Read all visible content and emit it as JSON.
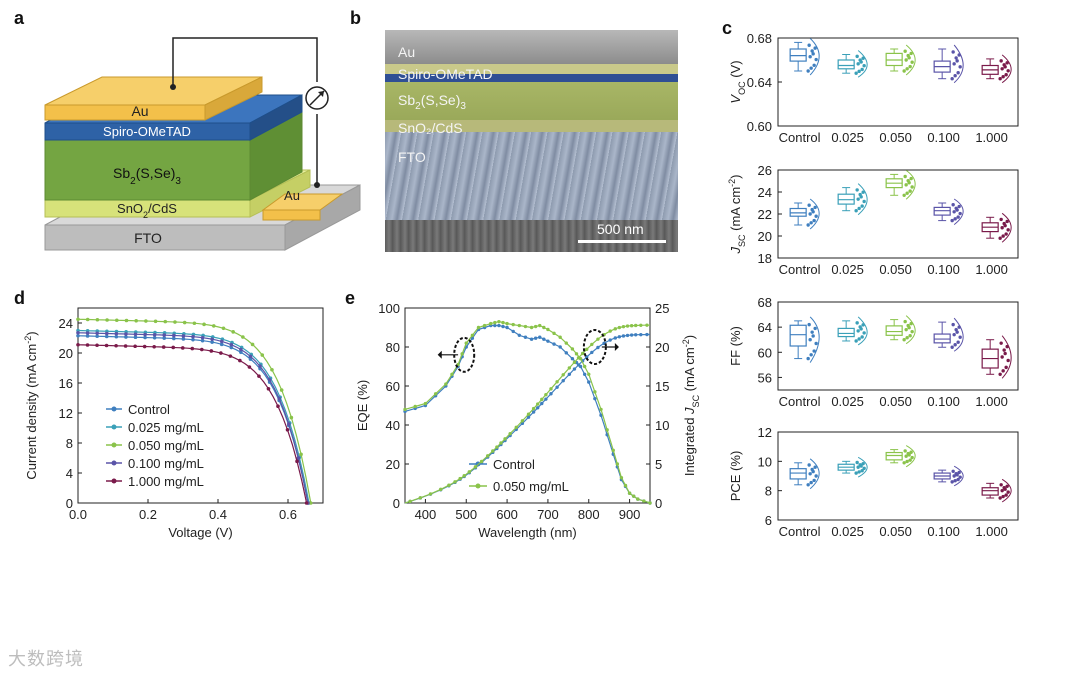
{
  "panels": {
    "a": "a",
    "b": "b",
    "c": "c",
    "d": "d",
    "e": "e"
  },
  "panel_a": {
    "layers": {
      "au_top": "Au",
      "spiro": "Spiro-OMeTAD",
      "absorber_base": "Sb",
      "absorber_sub": "2",
      "absorber_mid": "(S,Se)",
      "absorber_sub2": "3",
      "sno2_base": "SnO",
      "sno2_sub": "2",
      "sno2_tail": "/CdS",
      "fto": "FTO",
      "au_contact": "Au"
    }
  },
  "panel_b": {
    "layers": {
      "au": "Au",
      "spiro": "Spiro-OMeTAD",
      "absorber_base": "Sb",
      "absorber_sub": "2",
      "absorber_mid": "(S,Se)",
      "absorber_sub2": "3",
      "sno2": "SnO₂/CdS",
      "fto": "FTO"
    },
    "scale_bar": "500 nm"
  },
  "colors": {
    "control": "#3f7fbf",
    "c025": "#3aa0b8",
    "c050": "#8ac34a",
    "c100": "#5a54a8",
    "c1000": "#7a1a4a",
    "au": "#f3c04a",
    "spiro": "#2e62a6",
    "absorber": "#74a542",
    "sno2": "#d7e27a",
    "fto": "#bdbdbd"
  },
  "chart_data": [
    {
      "type": "box",
      "id": "voc",
      "ylabel_base": "V",
      "ylabel_sub": "OC",
      "ylabel_unit": " (V)",
      "categories": [
        "Control",
        "0.025",
        "0.050",
        "0.100",
        "1.000"
      ],
      "ylim": [
        0.6,
        0.68
      ],
      "yticks": [
        "0.60",
        "0.64",
        "0.68"
      ],
      "yticks_v": [
        0.6,
        0.64,
        0.68
      ],
      "boxes": [
        {
          "whislo": 0.65,
          "q1": 0.659,
          "med": 0.664,
          "q3": 0.67,
          "whishi": 0.676
        },
        {
          "whislo": 0.648,
          "q1": 0.652,
          "med": 0.655,
          "q3": 0.66,
          "whishi": 0.665
        },
        {
          "whislo": 0.65,
          "q1": 0.655,
          "med": 0.66,
          "q3": 0.666,
          "whishi": 0.67
        },
        {
          "whislo": 0.643,
          "q1": 0.649,
          "med": 0.654,
          "q3": 0.659,
          "whishi": 0.67
        },
        {
          "whislo": 0.643,
          "q1": 0.647,
          "med": 0.651,
          "q3": 0.655,
          "whishi": 0.661
        }
      ]
    },
    {
      "type": "box",
      "id": "jsc",
      "ylabel_base": "J",
      "ylabel_sub": "SC",
      "ylabel_unit": " (mA cm",
      "ylabel_sup": "-2",
      "ylabel_close": ")",
      "categories": [
        "Control",
        "0.025",
        "0.050",
        "0.100",
        "1.000"
      ],
      "ylim": [
        18,
        26
      ],
      "yticks": [
        "18",
        "20",
        "22",
        "24",
        "26"
      ],
      "yticks_v": [
        18,
        20,
        22,
        24,
        26
      ],
      "boxes": [
        {
          "whislo": 21.0,
          "q1": 21.8,
          "med": 22.1,
          "q3": 22.5,
          "whishi": 23.0
        },
        {
          "whislo": 22.3,
          "q1": 22.9,
          "med": 23.3,
          "q3": 23.8,
          "whishi": 24.4
        },
        {
          "whislo": 23.7,
          "q1": 24.4,
          "med": 24.8,
          "q3": 25.2,
          "whishi": 25.6
        },
        {
          "whislo": 21.4,
          "q1": 21.9,
          "med": 22.3,
          "q3": 22.6,
          "whishi": 23.0
        },
        {
          "whislo": 19.8,
          "q1": 20.4,
          "med": 20.8,
          "q3": 21.2,
          "whishi": 21.7
        }
      ]
    },
    {
      "type": "box",
      "id": "ff",
      "ylabel_base": "FF (%)",
      "categories": [
        "Control",
        "0.025",
        "0.050",
        "0.100",
        "1.000"
      ],
      "ylim": [
        54,
        68
      ],
      "yticks": [
        "56",
        "60",
        "64",
        "68"
      ],
      "yticks_v": [
        56,
        60,
        64,
        68
      ],
      "boxes": [
        {
          "whislo": 59.0,
          "q1": 61.0,
          "med": 62.8,
          "q3": 64.3,
          "whishi": 65.0
        },
        {
          "whislo": 61.8,
          "q1": 62.5,
          "med": 63.0,
          "q3": 63.8,
          "whishi": 65.0
        },
        {
          "whislo": 62.0,
          "q1": 62.7,
          "med": 63.3,
          "q3": 64.2,
          "whishi": 65.2
        },
        {
          "whislo": 60.8,
          "q1": 61.5,
          "med": 62.1,
          "q3": 62.9,
          "whishi": 64.8
        },
        {
          "whislo": 56.5,
          "q1": 57.5,
          "med": 59.0,
          "q3": 60.5,
          "whishi": 62.0
        }
      ]
    },
    {
      "type": "box",
      "id": "pce",
      "ylabel_base": "PCE (%)",
      "categories": [
        "Control",
        "0.025",
        "0.050",
        "0.100",
        "1.000"
      ],
      "ylim": [
        6,
        12
      ],
      "yticks": [
        "6",
        "8",
        "10",
        "12"
      ],
      "yticks_v": [
        6,
        8,
        10,
        12
      ],
      "boxes": [
        {
          "whislo": 8.4,
          "q1": 8.8,
          "med": 9.2,
          "q3": 9.5,
          "whishi": 9.9
        },
        {
          "whislo": 9.2,
          "q1": 9.4,
          "med": 9.6,
          "q3": 9.8,
          "whishi": 10.0
        },
        {
          "whislo": 9.9,
          "q1": 10.1,
          "med": 10.4,
          "q3": 10.6,
          "whishi": 10.8
        },
        {
          "whislo": 8.6,
          "q1": 8.8,
          "med": 9.0,
          "q3": 9.2,
          "whishi": 9.4
        },
        {
          "whislo": 7.5,
          "q1": 7.7,
          "med": 8.0,
          "q3": 8.2,
          "whishi": 8.5
        }
      ]
    },
    {
      "type": "line",
      "id": "jv",
      "xlabel": "Voltage (V)",
      "ylabel_base": "Current density (mA cm",
      "ylabel_sup": "-2",
      "ylabel_close": ")",
      "xlim": [
        0,
        0.7
      ],
      "ylim": [
        0,
        26
      ],
      "xticks": [
        "0.0",
        "0.2",
        "0.4",
        "0.6"
      ],
      "xticks_v": [
        0,
        0.2,
        0.4,
        0.6
      ],
      "yticks": [
        "0",
        "4",
        "8",
        "12",
        "16",
        "20",
        "24"
      ],
      "yticks_v": [
        0,
        4,
        8,
        12,
        16,
        20,
        24
      ],
      "series": [
        {
          "name": "Control",
          "jsc": 22.3,
          "voc": 0.657,
          "color_key": "control"
        },
        {
          "name": "0.025 mg/mL",
          "jsc": 23.0,
          "voc": 0.66,
          "color_key": "c025"
        },
        {
          "name": "0.050 mg/mL",
          "jsc": 24.5,
          "voc": 0.665,
          "color_key": "c050"
        },
        {
          "name": "0.100 mg/mL",
          "jsc": 22.7,
          "voc": 0.657,
          "color_key": "c100"
        },
        {
          "name": "1.000 mg/mL",
          "jsc": 21.1,
          "voc": 0.653,
          "color_key": "c1000"
        }
      ]
    },
    {
      "type": "line",
      "id": "eqe",
      "xlabel": "Wavelength (nm)",
      "ylabel": "EQE (%)",
      "ylabel2_base": "Integrated ",
      "ylabel2_it": "J",
      "ylabel2_sub": "SC",
      "ylabel2_unit": " (mA cm",
      "ylabel2_sup": "-2",
      "ylabel2_close": ")",
      "xlim": [
        350,
        950
      ],
      "ylim": [
        0,
        100
      ],
      "ylim2": [
        0,
        25
      ],
      "xticks": [
        "400",
        "500",
        "600",
        "700",
        "800",
        "900"
      ],
      "xticks_v": [
        400,
        500,
        600,
        700,
        800,
        900
      ],
      "yticks": [
        "0",
        "20",
        "40",
        "60",
        "80",
        "100"
      ],
      "yticks_v": [
        0,
        20,
        40,
        60,
        80,
        100
      ],
      "yticks2": [
        "0",
        "5",
        "10",
        "15",
        "20",
        "25"
      ],
      "yticks2_v": [
        0,
        5,
        10,
        15,
        20,
        25
      ],
      "eqe_series": [
        {
          "name": "Control",
          "color_key": "control",
          "x": [
            350,
            400,
            450,
            480,
            500,
            530,
            560,
            580,
            600,
            630,
            660,
            680,
            700,
            730,
            760,
            780,
            800,
            830,
            860,
            880,
            900,
            920,
            950
          ],
          "y": [
            47,
            50,
            60,
            70,
            80,
            89,
            91,
            91,
            90,
            86,
            84,
            85,
            83,
            80,
            74,
            70,
            62,
            45,
            25,
            12,
            5,
            2,
            0
          ]
        },
        {
          "name": "0.050 mg/mL",
          "color_key": "c050",
          "x": [
            350,
            400,
            450,
            480,
            500,
            530,
            560,
            580,
            600,
            630,
            660,
            680,
            700,
            730,
            760,
            780,
            800,
            830,
            860,
            880,
            900,
            920,
            950
          ],
          "y": [
            48,
            51,
            61,
            71,
            82,
            90,
            92,
            93,
            92,
            91,
            90,
            91,
            89,
            85,
            79,
            74,
            66,
            48,
            27,
            13,
            5,
            2,
            0
          ]
        }
      ],
      "integrated_final": [
        21.6,
        22.8
      ],
      "legend": [
        "Control",
        "0.050 mg/mL"
      ]
    }
  ],
  "watermark": "大数跨境"
}
